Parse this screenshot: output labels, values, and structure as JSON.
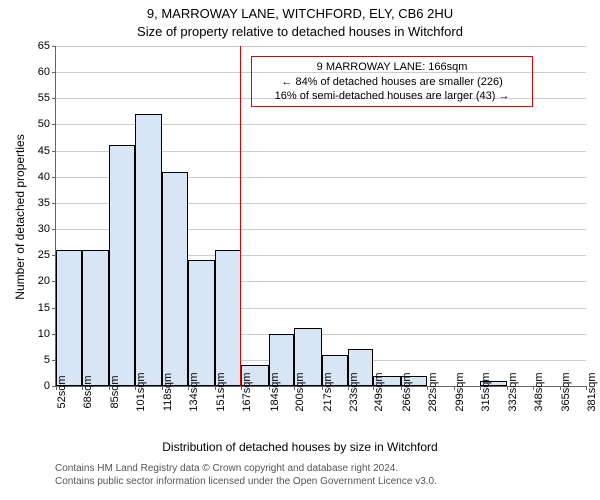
{
  "title_main": "9, MARROWAY LANE, WITCHFORD, ELY, CB6 2HU",
  "title_sub": "Size of property relative to detached houses in Witchford",
  "ylabel": "Number of detached properties",
  "xlabel": "Distribution of detached houses by size in Witchford",
  "footer_line1": "Contains HM Land Registry data © Crown copyright and database right 2024.",
  "footer_line2": "Contains public sector information licensed under the Open Government Licence v3.0.",
  "chart": {
    "type": "histogram",
    "background_color": "#ffffff",
    "grid_color": "#cccccc",
    "axis_color": "#666666",
    "bar_fill": "#d7e5f4",
    "bar_border": "#000000",
    "ref_line_color": "#dd0000",
    "ymin": 0,
    "ymax": 65,
    "ytick_step": 5,
    "x_ticks": [
      52,
      68,
      85,
      101,
      118,
      134,
      151,
      167,
      184,
      200,
      217,
      233,
      249,
      266,
      282,
      299,
      315,
      332,
      348,
      365,
      381
    ],
    "x_unit": "sqm",
    "bars": [
      {
        "x0": 52,
        "x1": 68,
        "y": 26
      },
      {
        "x0": 68,
        "x1": 85,
        "y": 26
      },
      {
        "x0": 85,
        "x1": 101,
        "y": 46
      },
      {
        "x0": 101,
        "x1": 118,
        "y": 52
      },
      {
        "x0": 118,
        "x1": 134,
        "y": 41
      },
      {
        "x0": 134,
        "x1": 151,
        "y": 24
      },
      {
        "x0": 151,
        "x1": 167,
        "y": 26
      },
      {
        "x0": 167,
        "x1": 184,
        "y": 4
      },
      {
        "x0": 184,
        "x1": 200,
        "y": 10
      },
      {
        "x0": 200,
        "x1": 217,
        "y": 11
      },
      {
        "x0": 217,
        "x1": 233,
        "y": 6
      },
      {
        "x0": 233,
        "x1": 249,
        "y": 7
      },
      {
        "x0": 249,
        "x1": 266,
        "y": 2
      },
      {
        "x0": 266,
        "x1": 282,
        "y": 2
      },
      {
        "x0": 282,
        "x1": 299,
        "y": 0
      },
      {
        "x0": 299,
        "x1": 315,
        "y": 0
      },
      {
        "x0": 315,
        "x1": 332,
        "y": 1
      },
      {
        "x0": 332,
        "x1": 348,
        "y": 0
      },
      {
        "x0": 348,
        "x1": 365,
        "y": 0
      },
      {
        "x0": 365,
        "x1": 381,
        "y": 0
      }
    ],
    "ref_value": 166,
    "annotation": {
      "line1": "9 MARROWAY LANE: 166sqm",
      "line2": "← 84% of detached houses are smaller (226)",
      "line3": "16% of semi-detached houses are larger (43) →",
      "x_center_value": 260,
      "y_top_value": 63,
      "border_color": "#dd0000"
    }
  }
}
